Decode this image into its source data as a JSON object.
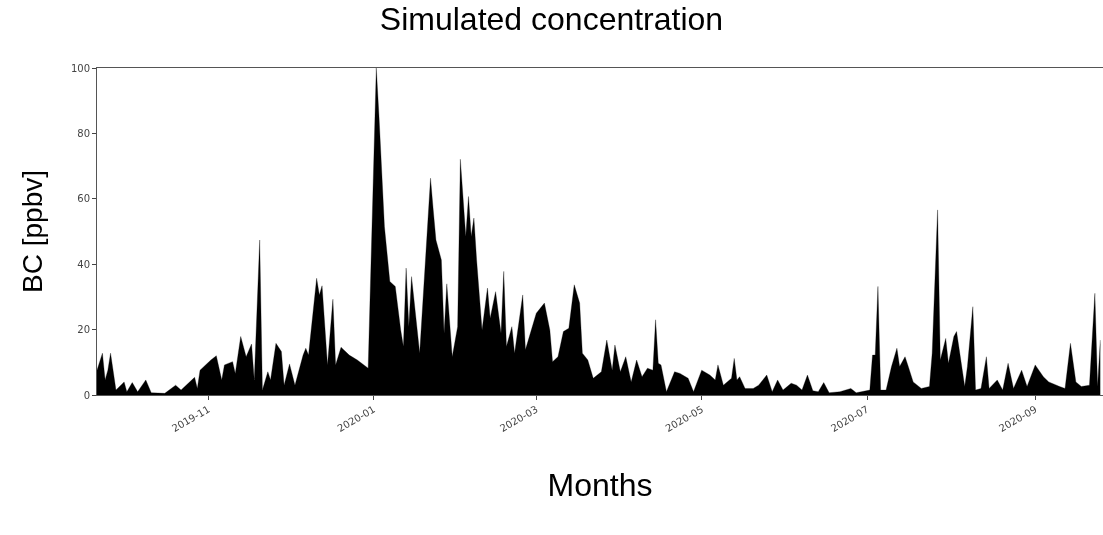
{
  "chart_data": {
    "type": "area",
    "title": "Simulated concentration",
    "xlabel": "Months",
    "ylabel": "BC [ppbv]",
    "x": [
      "2019-09-21",
      "2019-09-23",
      "2019-09-24",
      "2019-09-25",
      "2019-09-26",
      "2019-09-28",
      "2019-10-01",
      "2019-10-02",
      "2019-10-04",
      "2019-10-06",
      "2019-10-09",
      "2019-10-11",
      "2019-10-16",
      "2019-10-20",
      "2019-10-22",
      "2019-10-27",
      "2019-10-28",
      "2019-10-29",
      "2019-11-02",
      "2019-11-04",
      "2019-11-06",
      "2019-11-07",
      "2019-11-10",
      "2019-11-11",
      "2019-11-13",
      "2019-11-15",
      "2019-11-17",
      "2019-11-18",
      "2019-11-20",
      "2019-11-21",
      "2019-11-23",
      "2019-11-24",
      "2019-11-26",
      "2019-11-28",
      "2019-11-29",
      "2019-12-01",
      "2019-12-03",
      "2019-12-06",
      "2019-12-07",
      "2019-12-08",
      "2019-12-11",
      "2019-12-12",
      "2019-12-13",
      "2019-12-15",
      "2019-12-17",
      "2019-12-18",
      "2019-12-20",
      "2019-12-23",
      "2019-12-26",
      "2019-12-30",
      "2020-01-02",
      "2020-01-03",
      "2020-01-05",
      "2020-01-07",
      "2020-01-09",
      "2020-01-11",
      "2020-01-12",
      "2020-01-13",
      "2020-01-14",
      "2020-01-15",
      "2020-01-18",
      "2020-01-22",
      "2020-01-23",
      "2020-01-24",
      "2020-01-26",
      "2020-01-27",
      "2020-01-28",
      "2020-01-30",
      "2020-02-01",
      "2020-02-02",
      "2020-02-04",
      "2020-02-05",
      "2020-02-06",
      "2020-02-07",
      "2020-02-08",
      "2020-02-10",
      "2020-02-12",
      "2020-02-13",
      "2020-02-15",
      "2020-02-17",
      "2020-02-18",
      "2020-02-19",
      "2020-02-21",
      "2020-02-22",
      "2020-02-25",
      "2020-02-26",
      "2020-03-01",
      "2020-03-04",
      "2020-03-06",
      "2020-03-07",
      "2020-03-09",
      "2020-03-11",
      "2020-03-13",
      "2020-03-15",
      "2020-03-17",
      "2020-03-18",
      "2020-03-20",
      "2020-03-22",
      "2020-03-25",
      "2020-03-27",
      "2020-03-29",
      "2020-03-30",
      "2020-04-01",
      "2020-04-03",
      "2020-04-05",
      "2020-04-07",
      "2020-04-09",
      "2020-04-11",
      "2020-04-13",
      "2020-04-14",
      "2020-04-15",
      "2020-04-16",
      "2020-04-18",
      "2020-04-21",
      "2020-04-23",
      "2020-04-26",
      "2020-04-28",
      "2020-05-01",
      "2020-05-04",
      "2020-05-06",
      "2020-05-07",
      "2020-05-09",
      "2020-05-12",
      "2020-05-13",
      "2020-05-14",
      "2020-05-15",
      "2020-05-17",
      "2020-05-20",
      "2020-05-22",
      "2020-05-25",
      "2020-05-27",
      "2020-05-29",
      "2020-05-31",
      "2020-06-03",
      "2020-06-05",
      "2020-06-07",
      "2020-06-09",
      "2020-06-11",
      "2020-06-13",
      "2020-06-15",
      "2020-06-17",
      "2020-06-21",
      "2020-06-25",
      "2020-06-27",
      "2020-07-02",
      "2020-07-03",
      "2020-07-04",
      "2020-07-05",
      "2020-07-06",
      "2020-07-08",
      "2020-07-10",
      "2020-07-12",
      "2020-07-13",
      "2020-07-15",
      "2020-07-16",
      "2020-07-18",
      "2020-07-21",
      "2020-07-24",
      "2020-07-25",
      "2020-07-27",
      "2020-07-28",
      "2020-07-30",
      "2020-07-31",
      "2020-08-02",
      "2020-08-03",
      "2020-08-04",
      "2020-08-06",
      "2020-08-07",
      "2020-08-09",
      "2020-08-10",
      "2020-08-12",
      "2020-08-14",
      "2020-08-15",
      "2020-08-18",
      "2020-08-20",
      "2020-08-22",
      "2020-08-24",
      "2020-08-27",
      "2020-08-29",
      "2020-09-01",
      "2020-09-04",
      "2020-09-06",
      "2020-09-10",
      "2020-09-12",
      "2020-09-14",
      "2020-09-16",
      "2020-09-18",
      "2020-09-21",
      "2020-09-23",
      "2020-09-24",
      "2020-09-25"
    ],
    "values": [
      7.6,
      12.8,
      4.6,
      7.6,
      12.8,
      1.5,
      4,
      1,
      3.8,
      1,
      4.6,
      0.7,
      0.5,
      3,
      1.5,
      5.4,
      2,
      7.6,
      10.7,
      12,
      4.6,
      9.2,
      10.2,
      6.6,
      17.9,
      11.7,
      15.6,
      4.6,
      47.4,
      1.5,
      7.1,
      4.6,
      15.8,
      13.3,
      3,
      9.5,
      3,
      12.2,
      14.3,
      12.2,
      35.7,
      30.6,
      33.4,
      9.2,
      29.3,
      9.2,
      14.6,
      12.2,
      10.7,
      8.2,
      100,
      85.2,
      51.5,
      34.7,
      33.2,
      19.9,
      14.8,
      38.8,
      20.9,
      36.2,
      12.8,
      66.3,
      56.6,
      47.4,
      41.3,
      18.9,
      34,
      11.7,
      20.9,
      72.1,
      48.5,
      60.7,
      48.5,
      54.1,
      41.3,
      19.9,
      32.7,
      23.5,
      31.6,
      18.9,
      37.8,
      14.8,
      20.9,
      12.8,
      30.6,
      13.8,
      25,
      28.1,
      19.9,
      10.2,
      11.7,
      19.4,
      20.4,
      33.7,
      28.1,
      12.8,
      10.7,
      5.1,
      7.1,
      16.8,
      7.6,
      15.3,
      7.1,
      11.7,
      4,
      10.7,
      5.6,
      8.2,
      7.6,
      23,
      9.7,
      9.2,
      1,
      7.1,
      6.6,
      5.1,
      1,
      7.6,
      6.1,
      4.6,
      9.2,
      3,
      5.1,
      11.2,
      4.6,
      5.6,
      2,
      2,
      3,
      6.1,
      1,
      4.6,
      1.5,
      3.6,
      3,
      1.5,
      6.1,
      1.3,
      1,
      3.8,
      0.7,
      1,
      2,
      0.7,
      1.5,
      12.2,
      12.2,
      33.2,
      1.5,
      1.5,
      8.7,
      14.3,
      8.7,
      11.7,
      9.2,
      4,
      2,
      2.6,
      12.8,
      56.6,
      10.7,
      17.3,
      9.7,
      17.9,
      19.4,
      13.8,
      2.6,
      8.7,
      27,
      1.5,
      2,
      11.7,
      2,
      4.6,
      1.5,
      9.7,
      2,
      7.6,
      2.6,
      9.2,
      5.6,
      4,
      2.6,
      2,
      15.8,
      4,
      2.6,
      3,
      31.1,
      2.6,
      16.8
    ],
    "color": "#000000",
    "xlim": [
      "2019-09-21",
      "2020-09-26"
    ],
    "xticks": [
      {
        "value": "2019-11-01",
        "label": "2019-11"
      },
      {
        "value": "2020-01-01",
        "label": "2020-01"
      },
      {
        "value": "2020-03-01",
        "label": "2020-03"
      },
      {
        "value": "2020-05-01",
        "label": "2020-05"
      },
      {
        "value": "2020-07-01",
        "label": "2020-07"
      },
      {
        "value": "2020-09-01",
        "label": "2020-09"
      }
    ],
    "ylim": [
      0,
      100
    ],
    "yticks": [
      0,
      20,
      40,
      60,
      80,
      100
    ]
  }
}
